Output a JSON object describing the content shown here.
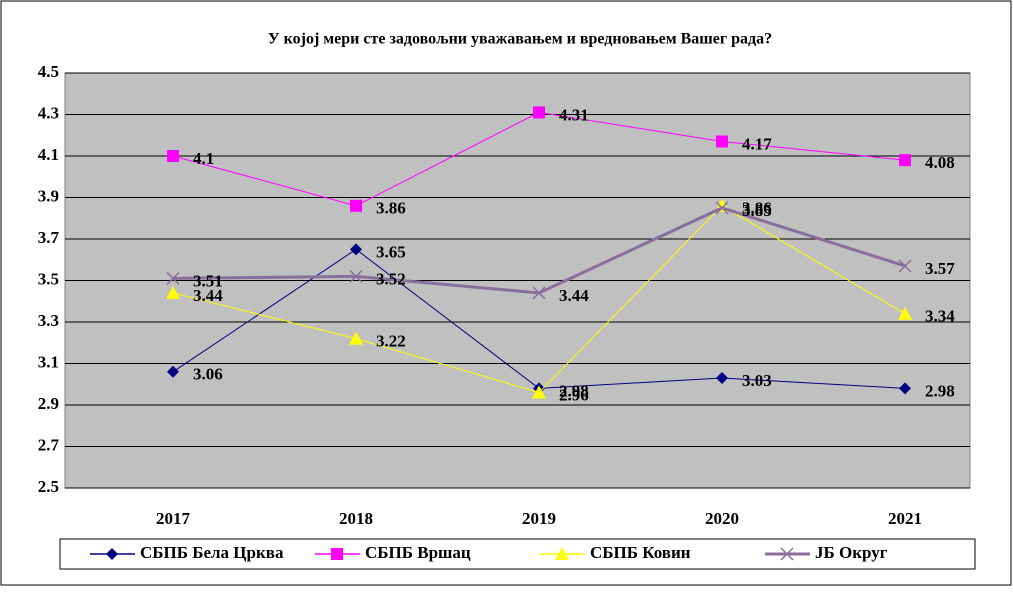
{
  "chart_data": {
    "type": "line",
    "title": "У којој мери сте задовољни уважавањем и вредновањем Вашег рада?",
    "categories": [
      "2017",
      "2018",
      "2019",
      "2020",
      "2021"
    ],
    "series": [
      {
        "name": "СБПБ Бела Црква",
        "color": "#000080",
        "marker": "diamond",
        "values": [
          3.06,
          3.65,
          2.98,
          3.03,
          2.98
        ]
      },
      {
        "name": "СБПБ Вршац",
        "color": "#ff00ff",
        "marker": "square",
        "values": [
          4.1,
          3.86,
          4.31,
          4.17,
          4.08
        ]
      },
      {
        "name": "СБПБ Ковин",
        "color": "#ffff00",
        "marker": "triangle",
        "values": [
          3.44,
          3.22,
          2.96,
          3.86,
          3.34
        ]
      },
      {
        "name": "ЈБ Округ",
        "color": "#8a6f9e",
        "marker": "x",
        "values": [
          3.51,
          3.52,
          3.44,
          3.85,
          3.57
        ]
      }
    ],
    "ylim": [
      2.5,
      4.5
    ],
    "yticks": [
      2.5,
      2.7,
      2.9,
      3.1,
      3.3,
      3.5,
      3.7,
      3.9,
      4.1,
      4.3,
      4.5
    ],
    "grid": true,
    "legend": "bottom"
  }
}
